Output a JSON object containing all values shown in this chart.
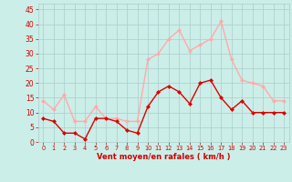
{
  "x": [
    0,
    1,
    2,
    3,
    4,
    5,
    6,
    7,
    8,
    9,
    10,
    11,
    12,
    13,
    14,
    15,
    16,
    17,
    18,
    19,
    20,
    21,
    22,
    23
  ],
  "vent_moyen": [
    8,
    7,
    3,
    3,
    1,
    8,
    8,
    7,
    4,
    3,
    12,
    17,
    19,
    17,
    13,
    20,
    21,
    15,
    11,
    14,
    10,
    10,
    10,
    10
  ],
  "rafales": [
    14,
    11,
    16,
    7,
    7,
    12,
    8,
    8,
    7,
    7,
    28,
    30,
    35,
    38,
    31,
    33,
    35,
    41,
    28,
    21,
    20,
    19,
    14,
    14
  ],
  "color_moyen": "#dd0000",
  "color_rafales": "#ffaaaa",
  "bg_color": "#cceee8",
  "grid_color": "#aacccc",
  "xlabel": "Vent moyen/en rafales ( km/h )",
  "xlabel_color": "#cc0000",
  "ylabel_ticks": [
    0,
    5,
    10,
    15,
    20,
    25,
    30,
    35,
    40,
    45
  ],
  "ylim": [
    0,
    47
  ],
  "xlim": [
    -0.5,
    23.5
  ],
  "tick_color": "#cc0000",
  "markersize": 2.5,
  "linewidth": 1.0
}
